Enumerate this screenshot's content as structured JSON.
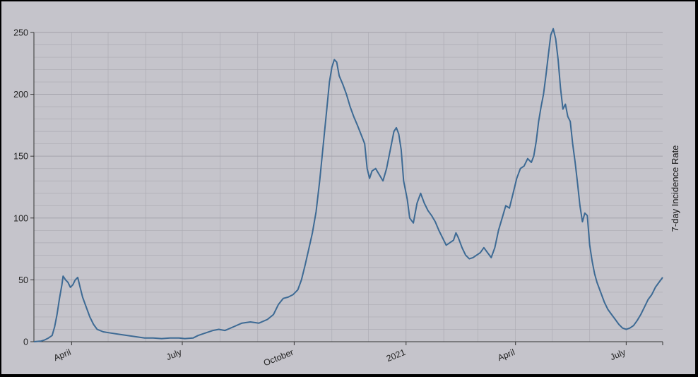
{
  "chart_data": {
    "type": "line",
    "title": "",
    "ylabel": "7-day Incidence Rate",
    "xlabel": "",
    "ylim": [
      0,
      250
    ],
    "x_start": "2020-03-01",
    "x_end": "2021-07-31",
    "y_ticks": [
      0,
      50,
      100,
      150,
      200,
      250
    ],
    "x_tick_labels": [
      {
        "label": "April",
        "date": "2020-04-01"
      },
      {
        "label": "July",
        "date": "2020-07-01"
      },
      {
        "label": "October",
        "date": "2020-10-01"
      },
      {
        "label": "2021",
        "date": "2021-01-01"
      },
      {
        "label": "April",
        "date": "2021-04-01"
      },
      {
        "label": "July",
        "date": "2021-07-01"
      }
    ],
    "grid": true,
    "line_color": "#3d6a94",
    "series": [
      {
        "points": [
          [
            "2020-03-01",
            0
          ],
          [
            "2020-03-07",
            0.5
          ],
          [
            "2020-03-10",
            1.5
          ],
          [
            "2020-03-13",
            3
          ],
          [
            "2020-03-16",
            5
          ],
          [
            "2020-03-18",
            12
          ],
          [
            "2020-03-20",
            22
          ],
          [
            "2020-03-22",
            35
          ],
          [
            "2020-03-24",
            46
          ],
          [
            "2020-03-25",
            53
          ],
          [
            "2020-03-27",
            50
          ],
          [
            "2020-03-29",
            48
          ],
          [
            "2020-03-31",
            44
          ],
          [
            "2020-04-02",
            46
          ],
          [
            "2020-04-04",
            50
          ],
          [
            "2020-04-06",
            52
          ],
          [
            "2020-04-08",
            44
          ],
          [
            "2020-04-10",
            36
          ],
          [
            "2020-04-13",
            28
          ],
          [
            "2020-04-16",
            20
          ],
          [
            "2020-04-19",
            14
          ],
          [
            "2020-04-22",
            10
          ],
          [
            "2020-04-27",
            8
          ],
          [
            "2020-05-03",
            7
          ],
          [
            "2020-05-10",
            6
          ],
          [
            "2020-05-17",
            5
          ],
          [
            "2020-05-24",
            4
          ],
          [
            "2020-05-31",
            3
          ],
          [
            "2020-06-07",
            3
          ],
          [
            "2020-06-14",
            2.5
          ],
          [
            "2020-06-21",
            3
          ],
          [
            "2020-06-28",
            3
          ],
          [
            "2020-07-03",
            2.5
          ],
          [
            "2020-07-10",
            3
          ],
          [
            "2020-07-14",
            5
          ],
          [
            "2020-07-20",
            7
          ],
          [
            "2020-07-26",
            9
          ],
          [
            "2020-07-31",
            10
          ],
          [
            "2020-08-05",
            9
          ],
          [
            "2020-08-12",
            12
          ],
          [
            "2020-08-19",
            15
          ],
          [
            "2020-08-26",
            16
          ],
          [
            "2020-09-02",
            15
          ],
          [
            "2020-09-09",
            18
          ],
          [
            "2020-09-14",
            22
          ],
          [
            "2020-09-18",
            30
          ],
          [
            "2020-09-22",
            35
          ],
          [
            "2020-09-26",
            36
          ],
          [
            "2020-09-30",
            38
          ],
          [
            "2020-10-04",
            42
          ],
          [
            "2020-10-07",
            50
          ],
          [
            "2020-10-10",
            62
          ],
          [
            "2020-10-13",
            75
          ],
          [
            "2020-10-16",
            88
          ],
          [
            "2020-10-19",
            105
          ],
          [
            "2020-10-22",
            130
          ],
          [
            "2020-10-25",
            160
          ],
          [
            "2020-10-28",
            190
          ],
          [
            "2020-10-30",
            210
          ],
          [
            "2020-11-01",
            222
          ],
          [
            "2020-11-03",
            228
          ],
          [
            "2020-11-05",
            226
          ],
          [
            "2020-11-07",
            215
          ],
          [
            "2020-11-10",
            208
          ],
          [
            "2020-11-13",
            200
          ],
          [
            "2020-11-16",
            190
          ],
          [
            "2020-11-19",
            182
          ],
          [
            "2020-11-22",
            175
          ],
          [
            "2020-11-24",
            170
          ],
          [
            "2020-11-26",
            165
          ],
          [
            "2020-11-28",
            160
          ],
          [
            "2020-11-30",
            140
          ],
          [
            "2020-12-02",
            132
          ],
          [
            "2020-12-04",
            138
          ],
          [
            "2020-12-07",
            140
          ],
          [
            "2020-12-10",
            135
          ],
          [
            "2020-12-13",
            130
          ],
          [
            "2020-12-16",
            140
          ],
          [
            "2020-12-19",
            155
          ],
          [
            "2020-12-22",
            170
          ],
          [
            "2020-12-24",
            173
          ],
          [
            "2020-12-26",
            168
          ],
          [
            "2020-12-28",
            155
          ],
          [
            "2020-12-30",
            130
          ],
          [
            "2021-01-02",
            115
          ],
          [
            "2021-01-04",
            100
          ],
          [
            "2021-01-07",
            96
          ],
          [
            "2021-01-10",
            112
          ],
          [
            "2021-01-13",
            120
          ],
          [
            "2021-01-16",
            112
          ],
          [
            "2021-01-19",
            106
          ],
          [
            "2021-01-22",
            102
          ],
          [
            "2021-01-25",
            97
          ],
          [
            "2021-01-28",
            90
          ],
          [
            "2021-01-31",
            84
          ],
          [
            "2021-02-03",
            78
          ],
          [
            "2021-02-06",
            80
          ],
          [
            "2021-02-09",
            82
          ],
          [
            "2021-02-11",
            88
          ],
          [
            "2021-02-13",
            84
          ],
          [
            "2021-02-16",
            76
          ],
          [
            "2021-02-19",
            70
          ],
          [
            "2021-02-22",
            67
          ],
          [
            "2021-02-25",
            68
          ],
          [
            "2021-02-28",
            70
          ],
          [
            "2021-03-03",
            72
          ],
          [
            "2021-03-06",
            76
          ],
          [
            "2021-03-09",
            72
          ],
          [
            "2021-03-12",
            68
          ],
          [
            "2021-03-15",
            76
          ],
          [
            "2021-03-18",
            90
          ],
          [
            "2021-03-21",
            100
          ],
          [
            "2021-03-24",
            110
          ],
          [
            "2021-03-27",
            108
          ],
          [
            "2021-03-30",
            120
          ],
          [
            "2021-04-02",
            132
          ],
          [
            "2021-04-05",
            140
          ],
          [
            "2021-04-08",
            142
          ],
          [
            "2021-04-11",
            148
          ],
          [
            "2021-04-14",
            145
          ],
          [
            "2021-04-16",
            150
          ],
          [
            "2021-04-18",
            162
          ],
          [
            "2021-04-20",
            178
          ],
          [
            "2021-04-22",
            190
          ],
          [
            "2021-04-24",
            200
          ],
          [
            "2021-04-26",
            215
          ],
          [
            "2021-04-28",
            232
          ],
          [
            "2021-04-30",
            248
          ],
          [
            "2021-05-02",
            253
          ],
          [
            "2021-05-04",
            245
          ],
          [
            "2021-05-06",
            228
          ],
          [
            "2021-05-08",
            205
          ],
          [
            "2021-05-10",
            188
          ],
          [
            "2021-05-12",
            192
          ],
          [
            "2021-05-14",
            182
          ],
          [
            "2021-05-16",
            178
          ],
          [
            "2021-05-18",
            160
          ],
          [
            "2021-05-20",
            145
          ],
          [
            "2021-05-22",
            128
          ],
          [
            "2021-05-24",
            110
          ],
          [
            "2021-05-26",
            97
          ],
          [
            "2021-05-28",
            104
          ],
          [
            "2021-05-30",
            102
          ],
          [
            "2021-06-01",
            78
          ],
          [
            "2021-06-03",
            65
          ],
          [
            "2021-06-05",
            55
          ],
          [
            "2021-06-07",
            48
          ],
          [
            "2021-06-10",
            40
          ],
          [
            "2021-06-13",
            32
          ],
          [
            "2021-06-16",
            26
          ],
          [
            "2021-06-19",
            22
          ],
          [
            "2021-06-22",
            18
          ],
          [
            "2021-06-25",
            14
          ],
          [
            "2021-06-28",
            11
          ],
          [
            "2021-07-01",
            10
          ],
          [
            "2021-07-04",
            11
          ],
          [
            "2021-07-07",
            13
          ],
          [
            "2021-07-10",
            17
          ],
          [
            "2021-07-13",
            22
          ],
          [
            "2021-07-16",
            28
          ],
          [
            "2021-07-19",
            34
          ],
          [
            "2021-07-22",
            38
          ],
          [
            "2021-07-25",
            44
          ],
          [
            "2021-07-28",
            48
          ],
          [
            "2021-07-31",
            52
          ]
        ]
      }
    ]
  }
}
